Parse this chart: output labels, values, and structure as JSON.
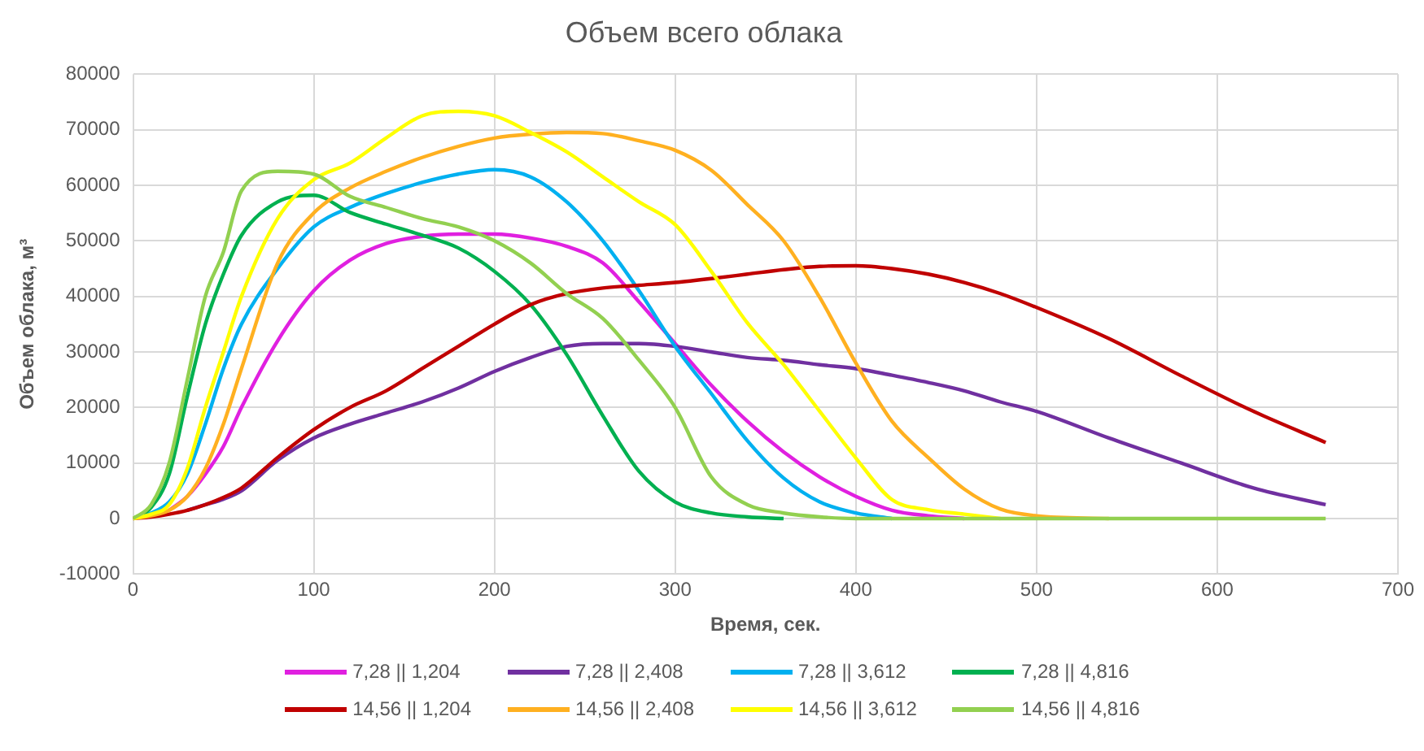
{
  "chart_data": {
    "type": "line",
    "title": "Объем всего облака",
    "xlabel": "Время, сек.",
    "ylabel": "Объем облака, м³",
    "x": [
      0,
      10,
      20,
      30,
      40,
      50,
      60,
      80,
      100,
      120,
      140,
      160,
      180,
      200,
      220,
      240,
      260,
      280,
      300,
      320,
      340,
      360,
      380,
      400,
      420,
      440,
      460,
      480,
      500,
      540,
      580,
      620,
      660
    ],
    "xlim": [
      0,
      700
    ],
    "xticks": [
      0,
      100,
      200,
      300,
      400,
      500,
      600,
      700
    ],
    "ylim": [
      -10000,
      80000
    ],
    "yticks": [
      -10000,
      0,
      10000,
      20000,
      30000,
      40000,
      50000,
      60000,
      70000,
      80000
    ],
    "grid": true,
    "legend": "bottom",
    "marker": "none",
    "line_style": "solid",
    "series": [
      {
        "name": "7,28 || 1,204",
        "color": "#e020e0",
        "values": [
          null,
          null,
          1500,
          4000,
          8000,
          13000,
          20000,
          32000,
          41000,
          46500,
          49500,
          50800,
          51200,
          51200,
          50500,
          49000,
          46000,
          39000,
          31500,
          24000,
          17500,
          12000,
          7500,
          4000,
          1500,
          500,
          0,
          null,
          null,
          null,
          null,
          null,
          null
        ]
      },
      {
        "name": "7,28 || 2,408",
        "color": "#7030a0",
        "values": [
          null,
          null,
          null,
          1500,
          2500,
          3500,
          5000,
          10500,
          14500,
          17000,
          19000,
          21000,
          23500,
          26500,
          29000,
          31000,
          31500,
          31500,
          31000,
          30000,
          29000,
          28500,
          27700,
          27000,
          25800,
          24500,
          23000,
          21000,
          19300,
          14500,
          10000,
          5500,
          2500
        ]
      },
      {
        "name": "7,28 || 3,612",
        "color": "#00b0f0",
        "values": [
          0,
          1000,
          3000,
          8000,
          17000,
          27000,
          35000,
          45000,
          52500,
          56000,
          58500,
          60500,
          62000,
          62800,
          61500,
          57000,
          50000,
          41000,
          31000,
          22500,
          14000,
          7300,
          3000,
          1000,
          0,
          null,
          null,
          null,
          null,
          null,
          null,
          null,
          null
        ]
      },
      {
        "name": "7,28 || 4,816",
        "color": "#00b050",
        "values": [
          0,
          2000,
          8000,
          22000,
          35000,
          44000,
          51000,
          57000,
          58200,
          55100,
          53000,
          51000,
          48700,
          44500,
          38500,
          29500,
          18500,
          8500,
          3000,
          1000,
          300,
          0,
          null,
          null,
          null,
          null,
          null,
          null,
          null,
          null,
          null,
          null,
          null
        ]
      },
      {
        "name": "14,56 || 1,204",
        "color": "#c00000",
        "values": [
          0,
          300,
          800,
          1500,
          2500,
          3800,
          5500,
          11000,
          16000,
          20000,
          23000,
          27000,
          31000,
          35000,
          38500,
          40500,
          41500,
          42000,
          42500,
          43200,
          44000,
          44800,
          45400,
          45500,
          45000,
          44000,
          42500,
          40500,
          38000,
          32400,
          25700,
          19300,
          13700
        ]
      },
      {
        "name": "14,56 || 2,408",
        "color": "#ffb020",
        "values": [
          0,
          500,
          1500,
          4000,
          9000,
          17000,
          27000,
          46000,
          55000,
          59500,
          62500,
          65000,
          67000,
          68500,
          69200,
          69500,
          69300,
          68000,
          66300,
          62700,
          56500,
          50000,
          39800,
          28000,
          17500,
          11000,
          5300,
          1700,
          500,
          0,
          null,
          null,
          null
        ]
      },
      {
        "name": "14,56 || 3,612",
        "color": "#ffff00",
        "values": [
          0,
          800,
          2500,
          9000,
          20000,
          30000,
          40000,
          54000,
          61000,
          64000,
          68500,
          72500,
          73300,
          72500,
          69500,
          66000,
          61500,
          57000,
          52900,
          44500,
          35200,
          27700,
          19300,
          10900,
          3400,
          1600,
          800,
          0,
          null,
          null,
          null,
          null,
          null
        ]
      },
      {
        "name": "14,56 || 4,816",
        "color": "#92d050",
        "values": [
          0,
          2500,
          10000,
          25000,
          40000,
          48000,
          59000,
          62500,
          62000,
          58000,
          56000,
          54000,
          52500,
          50000,
          46000,
          40500,
          36000,
          28500,
          20000,
          7500,
          2500,
          1000,
          300,
          0,
          0,
          0,
          0,
          0,
          0,
          0,
          0,
          0,
          0
        ]
      }
    ]
  }
}
